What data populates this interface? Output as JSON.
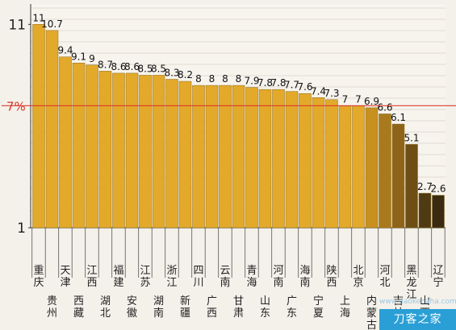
{
  "chart_data": {
    "type": "bar",
    "title": "",
    "xlabel": "",
    "ylabel": "",
    "ylim": [
      1,
      12
    ],
    "yticks": [
      "1",
      "11"
    ],
    "reference_line": {
      "value": 7,
      "label": "7%",
      "color": "#d9342b"
    },
    "categories": [
      "重庆",
      "贵州",
      "天津",
      "西藏",
      "江西",
      "湖北",
      "福建",
      "安徽",
      "江苏",
      "湖南",
      "浙江",
      "新疆",
      "四川",
      "广西",
      "云南",
      "甘肃",
      "青海",
      "山东",
      "河南",
      "广东",
      "海南",
      "宁夏",
      "陕西",
      "上海",
      "北京",
      "内蒙古",
      "河北",
      "吉林",
      "黑龙江",
      "山西",
      "辽宁"
    ],
    "values": [
      11,
      10.7,
      9.4,
      9.1,
      9,
      8.7,
      8.6,
      8.6,
      8.5,
      8.5,
      8.3,
      8.2,
      8,
      8,
      8,
      8,
      7.9,
      7.8,
      7.8,
      7.7,
      7.6,
      7.4,
      7.3,
      7,
      7,
      6.9,
      6.6,
      6.1,
      5.1,
      2.7,
      2.6
    ],
    "value_labels": [
      "11",
      "10.7",
      "9.4",
      "9.1",
      "9",
      "8.7",
      "8.6",
      "8.6",
      "8.5",
      "8.5",
      "8.3",
      "8.2",
      "8",
      "8",
      "8",
      "8",
      "7.9",
      "7.8",
      "7.8",
      "7.7",
      "7.6",
      "7.4",
      "7.3",
      "7",
      "7",
      "6.9",
      "6.6",
      "6.1",
      "5.1",
      "2.7",
      "2.6"
    ],
    "bar_colors": [
      "#e3a92a",
      "#e3a92a",
      "#e3a92a",
      "#e3a92a",
      "#e3a92a",
      "#e3a92a",
      "#e3a92a",
      "#e3a92a",
      "#e3a92a",
      "#e3a92a",
      "#e3a92a",
      "#e3a92a",
      "#e3a92a",
      "#e3a92a",
      "#e3a92a",
      "#e3a92a",
      "#e3a92a",
      "#e3a92a",
      "#e3a92a",
      "#e3a92a",
      "#e3a92a",
      "#e3a92a",
      "#e3a92a",
      "#e3a92a",
      "#e3a92a",
      "#c7901f",
      "#a97a1d",
      "#8f6418",
      "#6e4e14",
      "#4f3a12",
      "#3a2b10"
    ],
    "grid": true
  },
  "watermark": {
    "text": "刀客之家",
    "url": "www.daokehaha.com"
  }
}
